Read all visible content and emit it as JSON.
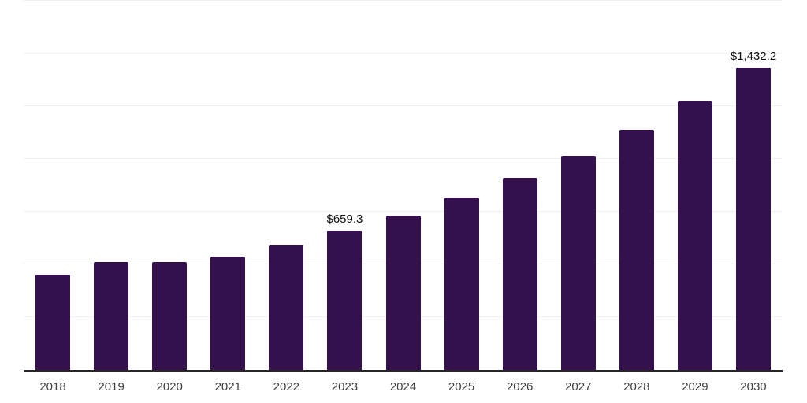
{
  "chart_data": {
    "type": "bar",
    "title": "",
    "xlabel": "",
    "ylabel": "",
    "categories": [
      "2018",
      "2019",
      "2020",
      "2021",
      "2022",
      "2023",
      "2024",
      "2025",
      "2026",
      "2027",
      "2028",
      "2029",
      "2030"
    ],
    "values": [
      451.9,
      511.2,
      510.0,
      536.2,
      594.4,
      659.3,
      730.2,
      817.2,
      909.3,
      1016.1,
      1137.0,
      1274.9,
      1432.2
    ],
    "bar_labels": [
      "",
      "",
      "",
      "",
      "",
      "$659.3",
      "",
      "",
      "",
      "",
      "",
      "",
      "$1,432.2"
    ],
    "ylim": [
      0,
      1750
    ],
    "grid_step": 250,
    "grid": true,
    "legend_position": "none",
    "colors": {
      "bar": "#34114D",
      "axis_line": "#262626",
      "gridline": "#f0f0f1",
      "tick_label": "#3d3d3d",
      "value_label": "#111111",
      "background": "#ffffff"
    }
  }
}
